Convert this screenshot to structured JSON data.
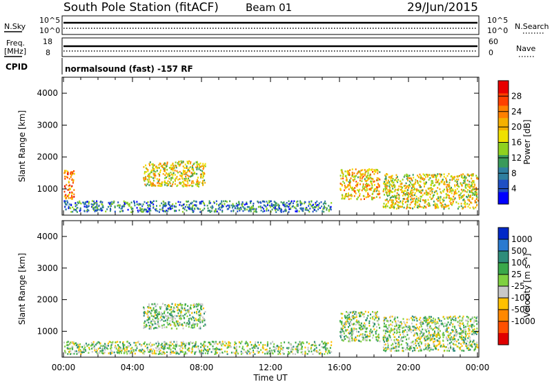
{
  "header": {
    "station": "South Pole Station (fitACF)",
    "beam": "Beam 01",
    "date": "29/Jun/2015"
  },
  "top_panels": {
    "nsky": {
      "label": "N.Sky",
      "ytop": "10^5",
      "ybot": "10^0"
    },
    "nsearch": {
      "label": "N.Search",
      "ytop": "10^5",
      "ybot": "10^0"
    },
    "freq": {
      "label_line1": "Freq.",
      "label_line2": "[MHz]",
      "ytop": "18",
      "ybot": "8"
    },
    "nave": {
      "label": "Nave",
      "ytop": "60",
      "ybot": "0"
    },
    "cpid": {
      "label": "CPID",
      "value": "normalsound (fast) -157 RF"
    }
  },
  "colorbars": {
    "power": {
      "label": "Power [dB]",
      "ticks": [
        "4",
        "8",
        "12",
        "16",
        "20",
        "24",
        "28"
      ],
      "colors": [
        "#0000ff",
        "#1f4fc4",
        "#2f7f9f",
        "#3a9a5a",
        "#8fd11f",
        "#f0e000",
        "#f5b000",
        "#ff8000",
        "#ff4000",
        "#e80000"
      ]
    },
    "velocity": {
      "label": "Velocity [m s⁻¹]",
      "ticks": [
        "1000",
        "500",
        "100",
        "25",
        "-25",
        "-100",
        "-500",
        "-1000"
      ],
      "colors": [
        "#0028c8",
        "#2a7ad0",
        "#2e8c7a",
        "#3aa84a",
        "#7fd040",
        "#c8c8c8",
        "#ffc000",
        "#ff8800",
        "#ff5000",
        "#e00000"
      ]
    }
  },
  "axis_text": {
    "xlabel": "Time UT",
    "ylabel": "Slant Range [km]"
  },
  "chart_data": [
    {
      "type": "heatmap",
      "panel": "power",
      "x_range": [
        "00:00",
        "24:00"
      ],
      "x_ticks": [
        "00:00",
        "04:00",
        "08:00",
        "12:00",
        "16:00",
        "20:00",
        "00:00"
      ],
      "ylim": [
        180,
        4500
      ],
      "y_ticks": [
        1000,
        2000,
        3000,
        4000
      ],
      "cbar_range": [
        0,
        32
      ],
      "echo_regions": [
        {
          "t0": 0.0,
          "t1": 15.5,
          "r0": 300,
          "r1": 650,
          "value": 8
        },
        {
          "t0": 0.0,
          "t1": 0.6,
          "r0": 700,
          "r1": 1600,
          "value": 24
        },
        {
          "t0": 4.6,
          "t1": 8.2,
          "r0": 1100,
          "r1": 1900,
          "value": 18
        },
        {
          "t0": 16.0,
          "t1": 18.3,
          "r0": 700,
          "r1": 1650,
          "value": 20
        },
        {
          "t0": 18.5,
          "t1": 24.0,
          "r0": 400,
          "r1": 1500,
          "value": 18
        }
      ]
    },
    {
      "type": "heatmap",
      "panel": "velocity",
      "x_range": [
        "00:00",
        "24:00"
      ],
      "x_ticks": [
        "00:00",
        "04:00",
        "08:00",
        "12:00",
        "16:00",
        "20:00",
        "00:00"
      ],
      "ylim": [
        180,
        4500
      ],
      "y_ticks": [
        1000,
        2000,
        3000,
        4000
      ],
      "cbar_range": [
        -1000,
        1000
      ],
      "echo_regions": [
        {
          "t0": 0.0,
          "t1": 15.5,
          "r0": 300,
          "r1": 700,
          "value": -100
        },
        {
          "t0": 4.6,
          "t1": 8.2,
          "r0": 1100,
          "r1": 1900,
          "value": -150
        },
        {
          "t0": 16.0,
          "t1": 18.3,
          "r0": 700,
          "r1": 1650,
          "value": -120
        },
        {
          "t0": 18.5,
          "t1": 24.0,
          "r0": 400,
          "r1": 1500,
          "value": -60
        }
      ]
    }
  ]
}
